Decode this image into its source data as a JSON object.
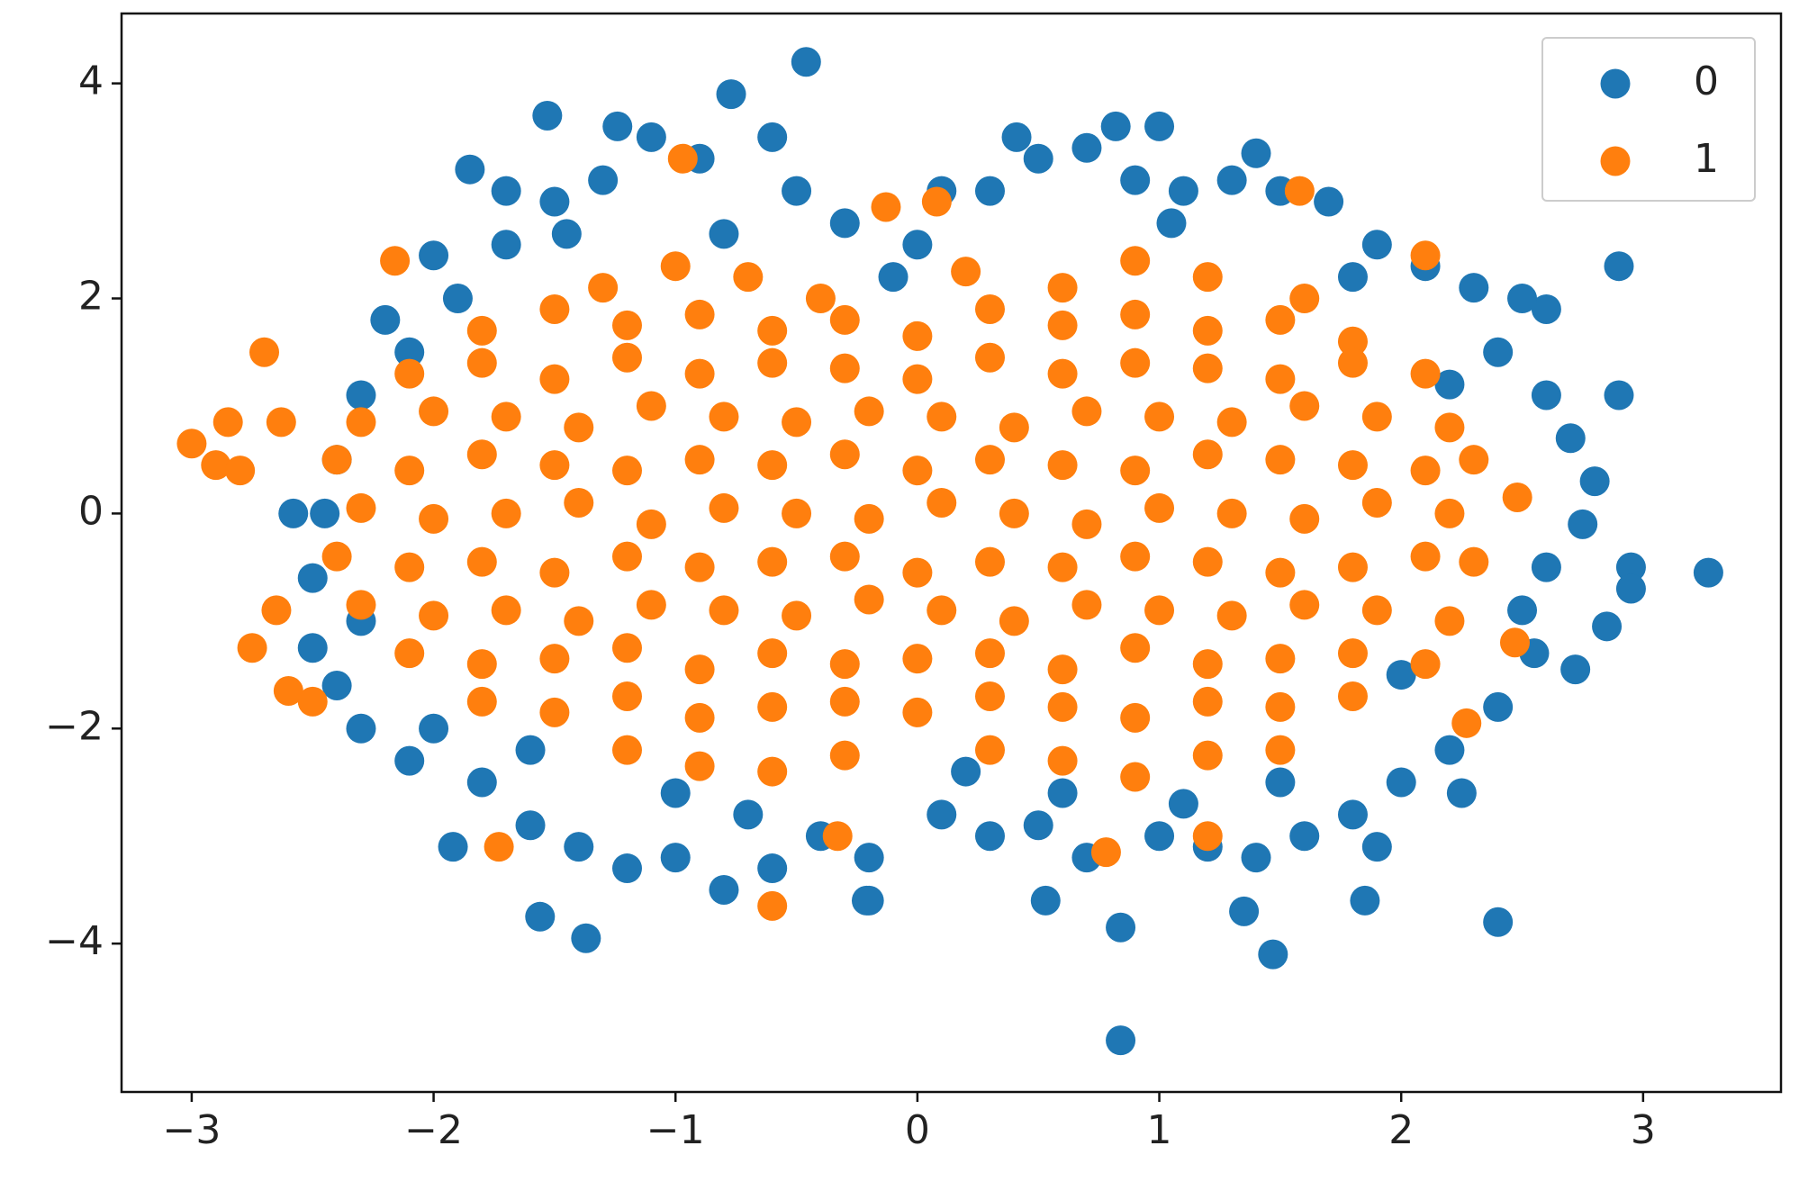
{
  "chart_data": {
    "type": "scatter",
    "legend": "upper right",
    "xlim": [
      -3.29,
      3.57
    ],
    "ylim": [
      -5.38,
      4.65
    ],
    "xticks": [
      {
        "value": -3,
        "label": "−3"
      },
      {
        "value": -2,
        "label": "−2"
      },
      {
        "value": -1,
        "label": "−1"
      },
      0,
      1,
      2,
      3
    ],
    "yticks": [
      {
        "value": -4,
        "label": "−4"
      },
      {
        "value": -2,
        "label": "−2"
      },
      0,
      2,
      4
    ],
    "series": [
      {
        "name": "0",
        "color": "#1f77b4",
        "x": [
          -0.46,
          -0.77,
          -1.53,
          -1.24,
          0.82,
          1.0,
          0.41,
          -1.85,
          2.9,
          3.27,
          2.95,
          0.84,
          -1.37,
          -1.56,
          1.47,
          2.4,
          0.84,
          1.35,
          1.85,
          0.53,
          -0.21,
          -1.92,
          2.6,
          2.85,
          2.72,
          -2.58,
          -2.5,
          -2.0,
          -2.2,
          -2.0,
          -1.7,
          -1.5,
          -1.3,
          -1.1,
          -0.9,
          -0.6,
          -0.5,
          -0.3,
          -0.1,
          0.1,
          0.3,
          0.5,
          0.7,
          0.9,
          1.1,
          1.3,
          1.5,
          1.7,
          1.4,
          1.9,
          2.1,
          2.3,
          2.5,
          2.4,
          2.6,
          2.7,
          2.8,
          2.75,
          2.6,
          2.5,
          2.55,
          2.4,
          2.2,
          2.25,
          2.0,
          1.8,
          1.9,
          1.6,
          1.4,
          1.2,
          1.0,
          0.7,
          0.5,
          0.3,
          0.1,
          -0.2,
          -0.4,
          -0.6,
          -0.8,
          -1.0,
          -1.2,
          -1.4,
          -1.6,
          -1.8,
          -2.1,
          -2.3,
          -2.4,
          -2.3,
          -2.5,
          -2.45,
          -2.4,
          -2.3,
          -2.1,
          -1.9,
          -1.6,
          -1.0,
          0.2,
          0.6,
          1.5,
          2.0,
          2.2,
          1.8,
          -0.8,
          0.0,
          -1.7,
          -0.2,
          1.1,
          -0.7,
          2.9,
          2.95,
          1.05,
          -1.45
        ],
        "values": [
          4.2,
          3.9,
          3.7,
          3.6,
          3.6,
          3.6,
          3.5,
          3.2,
          2.3,
          -0.55,
          -0.5,
          -4.9,
          -3.95,
          -3.75,
          -4.1,
          -3.8,
          -3.85,
          -3.7,
          -3.6,
          -3.6,
          -3.6,
          -3.1,
          1.9,
          -1.05,
          -1.45,
          0.0,
          -1.25,
          -2.0,
          1.8,
          2.4,
          2.5,
          2.9,
          3.1,
          3.5,
          3.3,
          3.5,
          3.0,
          2.7,
          2.2,
          3.0,
          3.0,
          3.3,
          3.4,
          3.1,
          3.0,
          3.1,
          3.0,
          2.9,
          3.35,
          2.5,
          2.3,
          2.1,
          2.0,
          1.5,
          1.1,
          0.7,
          0.3,
          -0.1,
          -0.5,
          -0.9,
          -1.3,
          -1.8,
          -2.2,
          -2.6,
          -2.5,
          -2.8,
          -3.1,
          -3.0,
          -3.2,
          -3.1,
          -3.0,
          -3.2,
          -2.9,
          -3.0,
          -2.8,
          -3.2,
          -3.0,
          -3.3,
          -3.5,
          -3.2,
          -3.3,
          -3.1,
          -2.9,
          -2.5,
          -2.3,
          -2.0,
          -1.6,
          -1.0,
          -0.6,
          0.0,
          0.5,
          1.1,
          1.5,
          2.0,
          -2.2,
          -2.6,
          -2.4,
          -2.6,
          -2.5,
          -1.5,
          1.2,
          2.2,
          2.6,
          2.5,
          3.0,
          -3.6,
          -2.7,
          -2.8,
          1.1,
          -0.7,
          2.7,
          2.6
        ]
      },
      {
        "name": "1",
        "color": "#ff7f0e",
        "x": [
          -3.0,
          -2.85,
          -2.7,
          -2.9,
          -2.8,
          -2.63,
          -2.75,
          -2.65,
          -2.6,
          -2.5,
          -1.73,
          -0.6,
          0.78,
          -0.33,
          1.2,
          0.08,
          -0.13,
          1.58,
          -0.97,
          2.48,
          2.47,
          2.27,
          2.1,
          -2.16,
          -1.3,
          -1.0,
          -0.7,
          -0.4,
          0.2,
          0.6,
          0.9,
          1.2,
          1.6,
          -1.8,
          -1.5,
          -1.2,
          -0.9,
          -0.6,
          -0.3,
          0.0,
          0.3,
          0.6,
          0.9,
          1.2,
          1.5,
          1.8,
          -2.1,
          -1.8,
          -1.5,
          -1.2,
          -0.9,
          -0.6,
          -0.3,
          0.0,
          0.3,
          0.6,
          0.9,
          1.2,
          1.5,
          1.8,
          2.1,
          -2.3,
          -2.0,
          -1.7,
          -1.4,
          -1.1,
          -0.8,
          -0.5,
          -0.2,
          0.1,
          0.4,
          0.7,
          1.0,
          1.3,
          1.6,
          1.9,
          2.2,
          -2.4,
          -2.1,
          -1.8,
          -1.5,
          -1.2,
          -0.9,
          -0.6,
          -0.3,
          0.0,
          0.3,
          0.6,
          0.9,
          1.2,
          1.5,
          1.8,
          2.1,
          2.3,
          -2.3,
          -2.0,
          -1.7,
          -1.4,
          -1.1,
          -0.8,
          -0.5,
          -0.2,
          0.1,
          0.4,
          0.7,
          1.0,
          1.3,
          1.6,
          1.9,
          2.2,
          -2.4,
          -2.1,
          -1.8,
          -1.5,
          -1.2,
          -0.9,
          -0.6,
          -0.3,
          0.0,
          0.3,
          0.6,
          0.9,
          1.2,
          1.5,
          1.8,
          2.1,
          2.3,
          -2.3,
          -2.0,
          -1.7,
          -1.4,
          -1.1,
          -0.8,
          -0.5,
          -0.2,
          0.1,
          0.4,
          0.7,
          1.0,
          1.3,
          1.6,
          1.9,
          2.2,
          -2.1,
          -1.8,
          -1.5,
          -1.2,
          -0.9,
          -0.6,
          -0.3,
          0.0,
          0.3,
          0.6,
          0.9,
          1.2,
          1.5,
          1.8,
          2.1,
          -1.8,
          -1.5,
          -1.2,
          -0.9,
          -0.6,
          -0.3,
          0.0,
          0.3,
          0.6,
          0.9,
          1.2,
          1.5,
          1.8,
          -1.2,
          -0.9,
          -0.6,
          -0.3,
          0.3,
          0.6,
          0.9,
          1.2,
          1.5
        ],
        "values": [
          0.65,
          0.85,
          1.5,
          0.45,
          0.4,
          0.85,
          -1.25,
          -0.9,
          -1.65,
          -1.75,
          -3.1,
          -3.65,
          -3.15,
          -3.0,
          -3.0,
          2.9,
          2.85,
          3.0,
          3.3,
          0.15,
          -1.2,
          -1.95,
          2.4,
          2.35,
          2.1,
          2.3,
          2.2,
          2.0,
          2.25,
          2.1,
          2.35,
          2.2,
          2.0,
          1.7,
          1.9,
          1.75,
          1.85,
          1.7,
          1.8,
          1.65,
          1.9,
          1.75,
          1.85,
          1.7,
          1.8,
          1.6,
          1.3,
          1.4,
          1.25,
          1.45,
          1.3,
          1.4,
          1.35,
          1.25,
          1.45,
          1.3,
          1.4,
          1.35,
          1.25,
          1.4,
          1.3,
          0.85,
          0.95,
          0.9,
          0.8,
          1.0,
          0.9,
          0.85,
          0.95,
          0.9,
          0.8,
          0.95,
          0.9,
          0.85,
          1.0,
          0.9,
          0.8,
          0.5,
          0.4,
          0.55,
          0.45,
          0.4,
          0.5,
          0.45,
          0.55,
          0.4,
          0.5,
          0.45,
          0.4,
          0.55,
          0.5,
          0.45,
          0.4,
          0.5,
          0.05,
          -0.05,
          0.0,
          0.1,
          -0.1,
          0.05,
          0.0,
          -0.05,
          0.1,
          0.0,
          -0.1,
          0.05,
          0.0,
          -0.05,
          0.1,
          0.0,
          -0.4,
          -0.5,
          -0.45,
          -0.55,
          -0.4,
          -0.5,
          -0.45,
          -0.4,
          -0.55,
          -0.45,
          -0.5,
          -0.4,
          -0.45,
          -0.55,
          -0.5,
          -0.4,
          -0.45,
          -0.85,
          -0.95,
          -0.9,
          -1.0,
          -0.85,
          -0.9,
          -0.95,
          -0.8,
          -0.9,
          -1.0,
          -0.85,
          -0.9,
          -0.95,
          -0.85,
          -0.9,
          -1.0,
          -1.3,
          -1.4,
          -1.35,
          -1.25,
          -1.45,
          -1.3,
          -1.4,
          -1.35,
          -1.3,
          -1.45,
          -1.25,
          -1.4,
          -1.35,
          -1.3,
          -1.4,
          -1.75,
          -1.85,
          -1.7,
          -1.9,
          -1.8,
          -1.75,
          -1.85,
          -1.7,
          -1.8,
          -1.9,
          -1.75,
          -1.8,
          -1.7,
          -2.2,
          -2.35,
          -2.4,
          -2.25,
          -2.2,
          -2.3,
          -2.45,
          -2.25,
          -2.2
        ]
      }
    ]
  }
}
